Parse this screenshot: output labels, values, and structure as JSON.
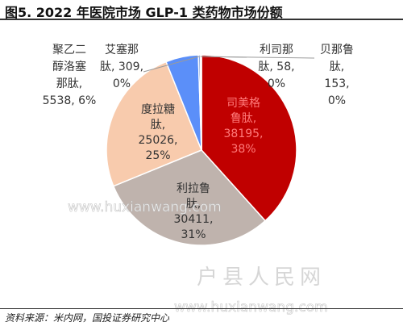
{
  "title": "图5. 2022 年医院市场 GLP-1 类药物市场份额",
  "source": "资料来源：米内网，国投证券研究中心",
  "watermark": {
    "url": "www.huxianwang.com",
    "site_name": "户县人民网"
  },
  "chart_data": {
    "type": "pie",
    "start_angle_deg": 0,
    "direction": "clockwise",
    "slices": [
      {
        "name": "司美格鲁肽",
        "value": 38195,
        "percent": "38%",
        "color": "#c00000",
        "lines": [
          "司美格",
          "鲁肽,",
          "38195,",
          "38%"
        ],
        "label_color": "#ff7a7a"
      },
      {
        "name": "利拉鲁肽",
        "value": 30411,
        "percent": "31%",
        "color": "#bfb3ad",
        "lines": [
          "利拉鲁",
          "肽,",
          "30411,",
          "31%"
        ],
        "label_color": "#333333"
      },
      {
        "name": "度拉糖肽",
        "value": 25026,
        "percent": "25%",
        "color": "#f8cbad",
        "lines": [
          "度拉糖",
          "肽,",
          "25026,",
          "25%"
        ],
        "label_color": "#333333"
      },
      {
        "name": "聚乙二醇洛塞那肽",
        "value": 5538,
        "percent": "6%",
        "color": "#5b8ff9",
        "lines": [
          "聚乙二",
          "醇洛塞",
          "那肽,",
          "5538, 6%"
        ],
        "label_color": "#333333"
      },
      {
        "name": "艾塞那肽",
        "value": 309,
        "percent": "0%",
        "color": "#4472c4",
        "lines": [
          "艾塞那",
          "肽, 309,",
          "0%"
        ],
        "label_color": "#333333"
      },
      {
        "name": "利司那肽",
        "value": 58,
        "percent": "0%",
        "color": "#70ad47",
        "lines": [
          "利司那",
          "肽, 58,",
          "0%"
        ],
        "label_color": "#333333"
      },
      {
        "name": "贝那鲁肽",
        "value": 153,
        "percent": "0%",
        "color": "#7f7f7f",
        "lines": [
          "贝那鲁",
          "肽,",
          "153,",
          "0%"
        ],
        "label_color": "#333333"
      }
    ]
  }
}
